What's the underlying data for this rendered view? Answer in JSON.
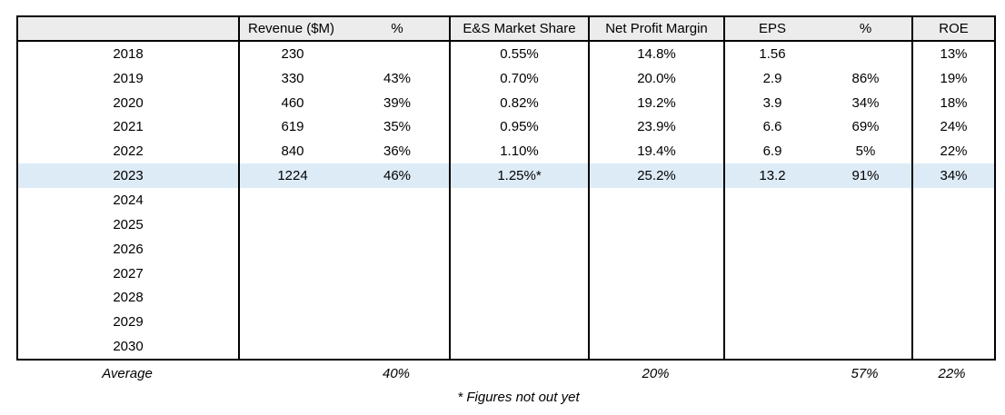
{
  "colors": {
    "header_bg": "#ECECEC",
    "highlight_row_bg": "#DDEBF7",
    "border": "#000000",
    "text": "#000000",
    "page_bg": "#FFFFFF"
  },
  "chart_data": {
    "type": "table",
    "title": "",
    "columns": [
      "",
      "Revenue ($M)",
      "%",
      "E&S Market Share",
      "Net Profit Margin",
      "EPS",
      "%",
      "ROE"
    ],
    "rows": [
      [
        "2018",
        "230",
        "",
        "0.55%",
        "14.8%",
        "1.56",
        "",
        "13%"
      ],
      [
        "2019",
        "330",
        "43%",
        "0.70%",
        "20.0%",
        "2.9",
        "86%",
        "19%"
      ],
      [
        "2020",
        "460",
        "39%",
        "0.82%",
        "19.2%",
        "3.9",
        "34%",
        "18%"
      ],
      [
        "2021",
        "619",
        "35%",
        "0.95%",
        "23.9%",
        "6.6",
        "69%",
        "24%"
      ],
      [
        "2022",
        "840",
        "36%",
        "1.10%",
        "19.4%",
        "6.9",
        "5%",
        "22%"
      ],
      [
        "2023",
        "1224",
        "46%",
        "1.25%*",
        "25.2%",
        "13.2",
        "91%",
        "34%"
      ],
      [
        "2024",
        "",
        "",
        "",
        "",
        "",
        "",
        ""
      ],
      [
        "2025",
        "",
        "",
        "",
        "",
        "",
        "",
        ""
      ],
      [
        "2026",
        "",
        "",
        "",
        "",
        "",
        "",
        ""
      ],
      [
        "2027",
        "",
        "",
        "",
        "",
        "",
        "",
        ""
      ],
      [
        "2028",
        "",
        "",
        "",
        "",
        "",
        "",
        ""
      ],
      [
        "2029",
        "",
        "",
        "",
        "",
        "",
        "",
        ""
      ],
      [
        "2030",
        "",
        "",
        "",
        "",
        "",
        "",
        ""
      ]
    ],
    "highlighted_row": "2023",
    "average_row": {
      "label": "Average",
      "revenue_growth_pct": "40%",
      "net_profit_margin": "20%",
      "eps_growth_pct": "57%",
      "roe": "22%"
    },
    "footnote": "* Figures not out yet"
  }
}
